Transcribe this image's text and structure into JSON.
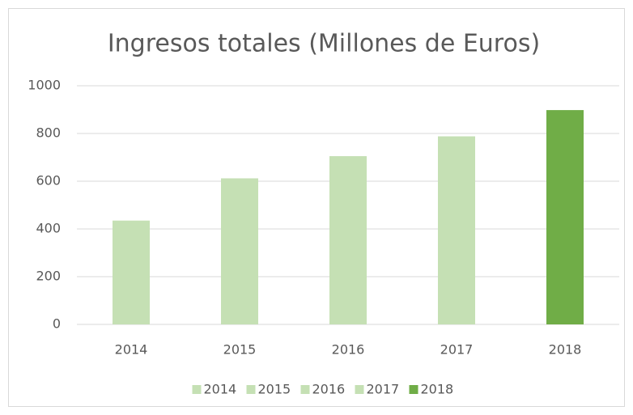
{
  "chart_data": {
    "type": "bar",
    "title": "Ingresos totales (Millones de Euros)",
    "categories": [
      "2014",
      "2015",
      "2016",
      "2017",
      "2018"
    ],
    "series": [
      {
        "name": "2014",
        "color": "#c5e0b4",
        "values": [
          435,
          null,
          null,
          null,
          null
        ]
      },
      {
        "name": "2015",
        "color": "#c5e0b4",
        "values": [
          null,
          612,
          null,
          null,
          null
        ]
      },
      {
        "name": "2016",
        "color": "#c5e0b4",
        "values": [
          null,
          null,
          705,
          null,
          null
        ]
      },
      {
        "name": "2017",
        "color": "#c5e0b4",
        "values": [
          null,
          null,
          null,
          788,
          null
        ]
      },
      {
        "name": "2018",
        "color": "#70ad47",
        "values": [
          null,
          null,
          null,
          null,
          898
        ]
      }
    ],
    "ylim": [
      0,
      1000
    ],
    "yticks": [
      0,
      200,
      400,
      600,
      800,
      1000
    ],
    "grid": true,
    "legend": "bottom"
  }
}
